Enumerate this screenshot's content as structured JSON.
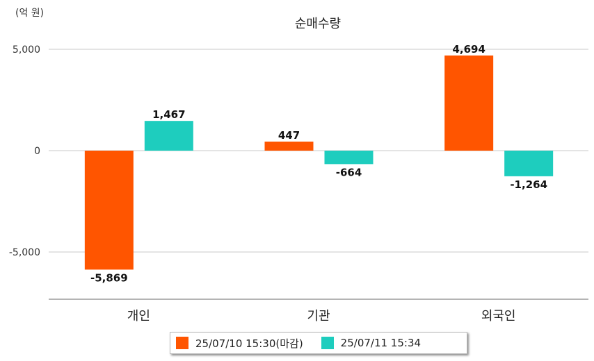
{
  "unit_label": "(억 원)",
  "chart_data": {
    "type": "bar",
    "title": "순매수량",
    "categories": [
      "개인",
      "기관",
      "외국인"
    ],
    "series": [
      {
        "name": "25/07/10 15:30(마감)",
        "color": "#FF5500",
        "values": [
          -5869,
          447,
          4694
        ],
        "labels": [
          "-5,869",
          "447",
          "4,694"
        ]
      },
      {
        "name": "25/07/11 15:34",
        "color": "#1ECDBE",
        "values": [
          1467,
          -664,
          -1264
        ],
        "labels": [
          "1,467",
          "-664",
          "-1,264"
        ]
      }
    ],
    "yticks": [
      5000,
      0,
      -5000
    ],
    "ytick_labels": [
      "5,000",
      "0",
      "-5,000"
    ],
    "ylim": [
      -7500,
      5000
    ],
    "grid": true,
    "legend_position": "bottom"
  }
}
